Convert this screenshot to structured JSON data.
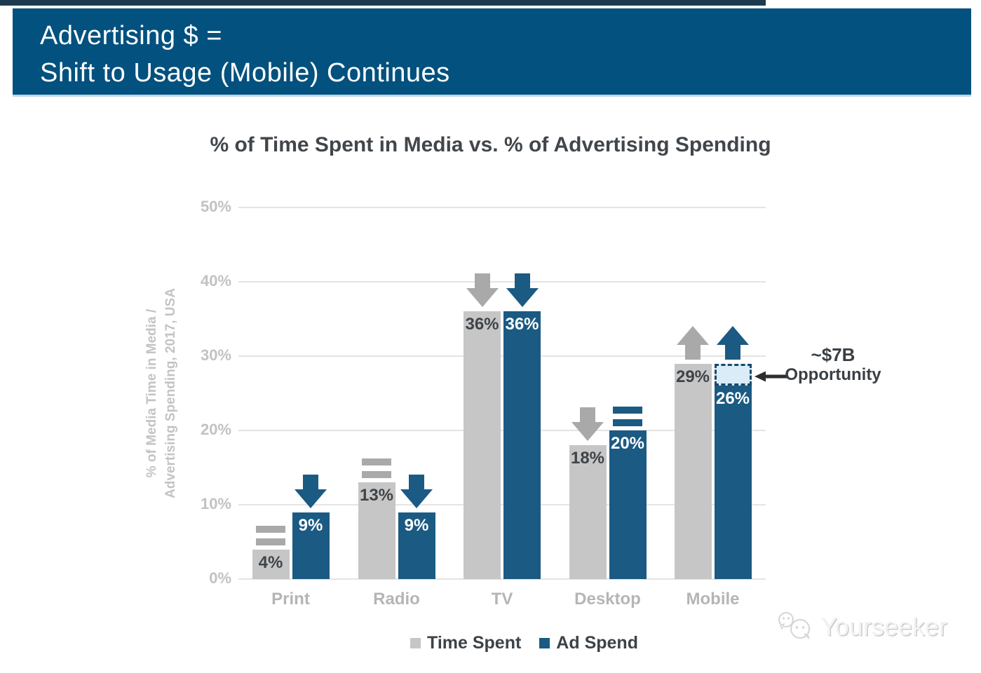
{
  "banner": {
    "line1": "Advertising $ =",
    "line2": "Shift to Usage (Mobile) Continues"
  },
  "chart_data": {
    "type": "bar",
    "title": "% of Time Spent in Media vs. % of Advertising Spending",
    "ylabel_line1": "% of Media Time in Media /",
    "ylabel_line2": "Advertising Spending, 2017, USA",
    "categories": [
      "Print",
      "Radio",
      "TV",
      "Desktop",
      "Mobile"
    ],
    "series": [
      {
        "name": "Time Spent",
        "color": "#c6c6c6",
        "label_color": "#3f4449",
        "indicator_color": "#a9a9a9",
        "values": [
          4,
          13,
          36,
          18,
          29
        ],
        "trends": [
          "flat",
          "flat",
          "down",
          "down",
          "up"
        ]
      },
      {
        "name": "Ad Spend",
        "color": "#1b5a82",
        "label_color": "#ffffff",
        "indicator_color": "#1b5a82",
        "values": [
          9,
          9,
          36,
          20,
          26
        ],
        "trends": [
          "down",
          "down",
          "down",
          "flat",
          "up"
        ]
      }
    ],
    "value_suffix": "%",
    "ylim": [
      0,
      50
    ],
    "grid": true,
    "y_ticks": [
      {
        "value": 0,
        "label": "0%"
      },
      {
        "value": 10,
        "label": "10%"
      },
      {
        "value": 20,
        "label": "20%"
      },
      {
        "value": 30,
        "label": "30%"
      },
      {
        "value": 40,
        "label": "40%"
      },
      {
        "value": 50,
        "label": "50%"
      }
    ],
    "legend_position": "bottom",
    "annotation": {
      "line1": "~$7B",
      "line2": "Opportunity",
      "category": "Mobile",
      "box_top_value": 29,
      "box_bottom_value": 26
    }
  },
  "legend": {
    "items": [
      {
        "label": "Time Spent",
        "color": "#c6c6c6"
      },
      {
        "label": "Ad Spend",
        "color": "#1b5a82"
      }
    ]
  },
  "watermark": {
    "text": "Yourseeker"
  }
}
